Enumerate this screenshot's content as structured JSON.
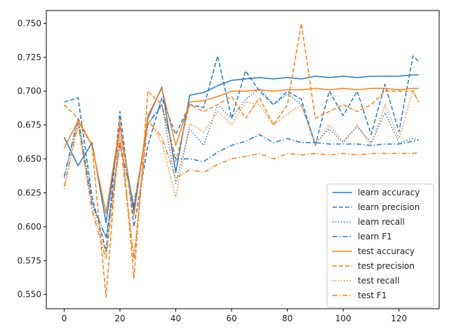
{
  "chart_data": {
    "type": "line",
    "title": "",
    "xlabel": "",
    "ylabel": "",
    "xlim": [
      -6.4,
      134.4
    ],
    "ylim": [
      0.5395,
      0.7595
    ],
    "xticks": [
      0,
      20,
      40,
      60,
      80,
      100,
      120
    ],
    "xtick_labels": [
      "0",
      "20",
      "40",
      "60",
      "80",
      "100",
      "120"
    ],
    "yticks": [
      0.55,
      0.575,
      0.6,
      0.625,
      0.65,
      0.675,
      0.7,
      0.725,
      0.75
    ],
    "ytick_labels": [
      "0.550",
      "0.575",
      "0.600",
      "0.625",
      "0.650",
      "0.675",
      "0.700",
      "0.725",
      "0.750"
    ],
    "grid": false,
    "legend": "lower-right",
    "x": [
      0,
      5,
      10,
      15,
      20,
      25,
      30,
      35,
      40,
      45,
      50,
      55,
      60,
      65,
      70,
      75,
      80,
      85,
      90,
      95,
      100,
      105,
      110,
      115,
      120,
      125,
      127
    ],
    "series": [
      {
        "name": "learn accuracy",
        "color": "#1f77d4",
        "dash": "solid",
        "values": [
          0.666,
          0.645,
          0.662,
          0.603,
          0.674,
          0.612,
          0.68,
          0.703,
          0.64,
          0.697,
          0.699,
          0.704,
          0.708,
          0.709,
          0.71,
          0.709,
          0.71,
          0.709,
          0.711,
          0.71,
          0.711,
          0.71,
          0.711,
          0.711,
          0.711,
          0.712,
          0.712
        ]
      },
      {
        "name": "learn precision",
        "color": "#1f77d4",
        "dash": "dashed",
        "values": [
          0.692,
          0.695,
          0.622,
          0.582,
          0.685,
          0.6,
          0.66,
          0.695,
          0.668,
          0.69,
          0.688,
          0.726,
          0.68,
          0.715,
          0.7,
          0.69,
          0.7,
          0.694,
          0.66,
          0.7,
          0.682,
          0.7,
          0.668,
          0.705,
          0.67,
          0.726,
          0.722
        ]
      },
      {
        "name": "learn recall",
        "color": "#1f77d4",
        "dash": "dotted",
        "values": [
          0.636,
          0.68,
          0.618,
          0.592,
          0.66,
          0.615,
          0.675,
          0.69,
          0.632,
          0.672,
          0.66,
          0.69,
          0.68,
          0.694,
          0.702,
          0.69,
          0.698,
          0.69,
          0.662,
          0.672,
          0.662,
          0.674,
          0.662,
          0.684,
          0.662,
          0.665,
          0.664
        ]
      },
      {
        "name": "learn F1",
        "color": "#1f77d4",
        "dash": "dashdot",
        "values": [
          0.637,
          0.68,
          0.617,
          0.592,
          0.66,
          0.616,
          0.676,
          0.69,
          0.65,
          0.65,
          0.648,
          0.655,
          0.66,
          0.663,
          0.668,
          0.662,
          0.665,
          0.662,
          0.662,
          0.661,
          0.661,
          0.661,
          0.66,
          0.661,
          0.661,
          0.663,
          0.664
        ]
      },
      {
        "name": "test accuracy",
        "color": "#ff7f0e",
        "dash": "solid",
        "values": [
          0.658,
          0.678,
          0.66,
          0.61,
          0.675,
          0.608,
          0.682,
          0.702,
          0.66,
          0.692,
          0.693,
          0.696,
          0.7,
          0.7,
          0.701,
          0.7,
          0.701,
          0.701,
          0.702,
          0.701,
          0.702,
          0.701,
          0.702,
          0.702,
          0.701,
          0.702,
          0.702
        ]
      },
      {
        "name": "test precision",
        "color": "#ff7f0e",
        "dash": "dashed",
        "values": [
          0.69,
          0.68,
          0.66,
          0.548,
          0.68,
          0.562,
          0.7,
          0.69,
          0.648,
          0.69,
          0.685,
          0.69,
          0.696,
          0.68,
          0.695,
          0.675,
          0.69,
          0.75,
          0.68,
          0.685,
          0.69,
          0.685,
          0.69,
          0.7,
          0.7,
          0.7,
          0.692
        ]
      },
      {
        "name": "test recall",
        "color": "#ff7f0e",
        "dash": "dotted",
        "values": [
          0.628,
          0.675,
          0.615,
          0.58,
          0.668,
          0.578,
          0.68,
          0.662,
          0.622,
          0.676,
          0.67,
          0.685,
          0.675,
          0.692,
          0.69,
          0.675,
          0.683,
          0.69,
          0.66,
          0.675,
          0.663,
          0.675,
          0.66,
          0.69,
          0.665,
          0.7,
          0.692
        ]
      },
      {
        "name": "test F1",
        "color": "#ff7f0e",
        "dash": "dashdot",
        "values": [
          0.63,
          0.676,
          0.612,
          0.576,
          0.664,
          0.575,
          0.678,
          0.666,
          0.636,
          0.642,
          0.64,
          0.646,
          0.65,
          0.652,
          0.654,
          0.65,
          0.654,
          0.653,
          0.654,
          0.653,
          0.654,
          0.653,
          0.654,
          0.654,
          0.654,
          0.654,
          0.655
        ]
      }
    ]
  }
}
